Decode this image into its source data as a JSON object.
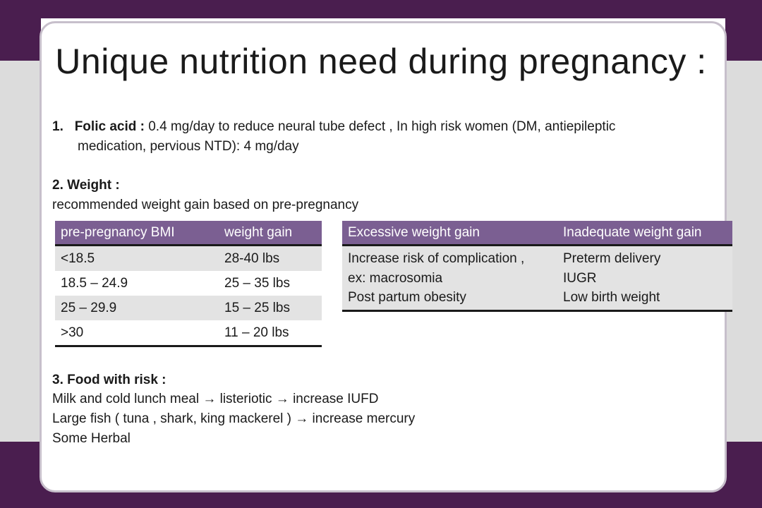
{
  "slide": {
    "title": "Unique nutrition need during pregnancy :",
    "folic": {
      "number": "1.",
      "label": "Folic acid :",
      "text_line1": " 0.4 mg/day to reduce neural tube defect , In high risk women (DM, antiepileptic",
      "text_line2": "medication, pervious NTD): 4 mg/day"
    },
    "weight": {
      "heading": "2. Weight :",
      "subtext": "recommended weight gain based on pre-pregnancy"
    },
    "bmi_table": {
      "headers": [
        "pre-pregnancy BMI",
        "weight gain"
      ],
      "rows": [
        [
          "<18.5",
          "28-40 lbs"
        ],
        [
          "18.5 – 24.9",
          "25 – 35 lbs"
        ],
        [
          "25 – 29.9",
          "15 – 25 lbs"
        ],
        [
          ">30",
          "11 – 20 lbs"
        ]
      ]
    },
    "effect_table": {
      "headers": [
        "Excessive weight gain",
        "Inadequate weight gain"
      ],
      "excessive": [
        "Increase risk of complication ,",
        "ex: macrosomia",
        "Post partum obesity"
      ],
      "inadequate": [
        "Preterm delivery",
        "IUGR",
        "Low birth weight"
      ]
    },
    "food": {
      "heading": "3. Food with risk :",
      "lines": [
        "Milk and cold lunch meal → listeriotic → increase IUFD",
        "Large fish ( tuna , shark, king mackerel ) → increase mercury",
        "Some Herbal"
      ]
    }
  },
  "colors": {
    "frame": "#4a1e4f",
    "table_header": "#7b5f92",
    "row_shade": "#e3e3e3"
  }
}
